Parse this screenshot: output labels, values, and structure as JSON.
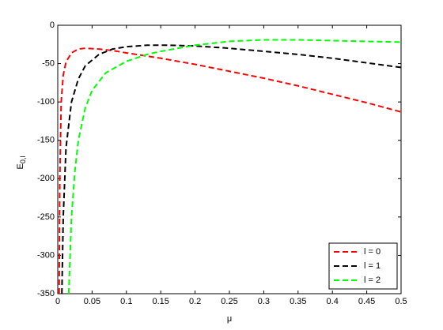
{
  "chart_data": {
    "type": "line",
    "xlabel": "μ",
    "ylabel": "E",
    "ylabel_subscript": "0,l",
    "xlim": [
      0,
      0.5
    ],
    "ylim": [
      -350,
      0
    ],
    "xticks": [
      0,
      0.05,
      0.1,
      0.15,
      0.2,
      0.25,
      0.3,
      0.35,
      0.4,
      0.45,
      0.5
    ],
    "yticks": [
      -350,
      -300,
      -250,
      -200,
      -150,
      -100,
      -50,
      0
    ],
    "legend": "lower right",
    "dashed": true,
    "series": [
      {
        "name": "l = 0",
        "color": "#ff0000",
        "x": [
          0.002,
          0.003,
          0.005,
          0.008,
          0.012,
          0.02,
          0.03,
          0.04,
          0.06,
          0.08,
          0.1,
          0.15,
          0.2,
          0.25,
          0.3,
          0.35,
          0.4,
          0.45,
          0.5
        ],
        "values": [
          -350,
          -200,
          -100,
          -65,
          -48,
          -36,
          -31,
          -30,
          -31,
          -33,
          -36,
          -43,
          -51,
          -60,
          -69,
          -79,
          -90,
          -101,
          -113
        ]
      },
      {
        "name": "l = 1",
        "color": "#000000",
        "x": [
          0.006,
          0.008,
          0.012,
          0.02,
          0.03,
          0.04,
          0.06,
          0.08,
          0.1,
          0.13,
          0.16,
          0.2,
          0.25,
          0.3,
          0.35,
          0.4,
          0.45,
          0.5
        ],
        "values": [
          -350,
          -250,
          -160,
          -100,
          -70,
          -53,
          -38,
          -31,
          -28,
          -26,
          -26,
          -27,
          -30,
          -34,
          -38,
          -43,
          -49,
          -55
        ]
      },
      {
        "name": "l = 2",
        "color": "#00ff00",
        "x": [
          0.016,
          0.02,
          0.025,
          0.03,
          0.04,
          0.05,
          0.07,
          0.1,
          0.13,
          0.15,
          0.2,
          0.25,
          0.3,
          0.35,
          0.4,
          0.45,
          0.5
        ],
        "values": [
          -350,
          -250,
          -190,
          -150,
          -108,
          -85,
          -62,
          -47,
          -38,
          -34,
          -26,
          -21,
          -19,
          -19,
          -20,
          -21,
          -22
        ]
      }
    ]
  }
}
